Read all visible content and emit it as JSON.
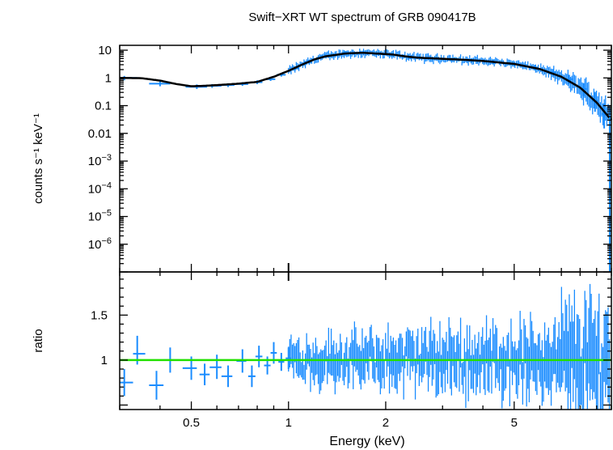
{
  "chart_data": {
    "type": "scatter",
    "title": "Swift−XRT WT spectrum of GRB 090417B",
    "xlabel": "Energy (keV)",
    "x_scale": "log",
    "xlim": [
      0.3,
      10
    ],
    "x_ticks": [
      {
        "value": 0.5,
        "label": "0.5"
      },
      {
        "value": 1,
        "label": "1"
      },
      {
        "value": 2,
        "label": "2"
      },
      {
        "value": 5,
        "label": "5"
      }
    ],
    "colors": {
      "data": "#1a8cff",
      "model": "#000000",
      "ratio_line": "#22e000"
    },
    "panels": [
      {
        "name": "spectrum",
        "ylabel": "counts s⁻¹ keV⁻¹",
        "y_scale": "log",
        "ylim": [
          1e-07,
          15
        ],
        "y_ticks": [
          {
            "value": 10,
            "label": "10"
          },
          {
            "value": 1,
            "label": "1"
          },
          {
            "value": 0.1,
            "label": "0.1"
          },
          {
            "value": 0.01,
            "label": "0.01"
          },
          {
            "value": 0.001,
            "label": "10−3"
          },
          {
            "value": 0.0001,
            "label": "10−4"
          },
          {
            "value": 1e-05,
            "label": "10−5"
          },
          {
            "value": 1e-06,
            "label": "10−6"
          }
        ],
        "series": [
          {
            "style": "crosses",
            "points": [
              {
                "x": 0.31,
                "y": 1.0,
                "xlo": 0.3,
                "xhi": 0.34,
                "ylo": 0.82,
                "yhi": 1.18
              },
              {
                "x": 0.4,
                "y": 0.62,
                "xlo": 0.37,
                "xhi": 0.43,
                "ylo": 0.5,
                "yhi": 0.74
              },
              {
                "x": 0.52,
                "y": 0.48,
                "xlo": 0.48,
                "xhi": 0.56,
                "ylo": 0.4,
                "yhi": 0.58
              },
              {
                "x": 0.58,
                "y": 0.52,
                "xlo": 0.56,
                "xhi": 0.62,
                "ylo": 0.44,
                "yhi": 0.6
              },
              {
                "x": 0.65,
                "y": 0.55,
                "xlo": 0.62,
                "xhi": 0.68,
                "ylo": 0.47,
                "yhi": 0.64
              },
              {
                "x": 0.72,
                "y": 0.6,
                "xlo": 0.69,
                "xhi": 0.75,
                "ylo": 0.52,
                "yhi": 0.7
              },
              {
                "x": 0.8,
                "y": 0.7,
                "xlo": 0.77,
                "xhi": 0.83,
                "ylo": 0.6,
                "yhi": 0.82
              },
              {
                "x": 0.88,
                "y": 0.9,
                "xlo": 0.85,
                "xhi": 0.91,
                "ylo": 0.78,
                "yhi": 1.04
              },
              {
                "x": 0.95,
                "y": 1.3,
                "xlo": 0.92,
                "xhi": 0.98,
                "ylo": 1.12,
                "yhi": 1.5
              },
              {
                "x": 1.05,
                "y": 2.2,
                "xlo": 1.02,
                "xhi": 1.08,
                "ylo": 1.9,
                "yhi": 2.6
              },
              {
                "x": 1.15,
                "y": 3.8,
                "xlo": 1.12,
                "xhi": 1.18,
                "ylo": 3.3,
                "yhi": 4.4
              },
              {
                "x": 1.3,
                "y": 6.0,
                "xlo": 1.26,
                "xhi": 1.34,
                "ylo": 5.2,
                "yhi": 7.0
              },
              {
                "x": 1.5,
                "y": 8.0,
                "xlo": 1.46,
                "xhi": 1.54,
                "ylo": 7.0,
                "yhi": 9.2
              },
              {
                "x": 1.7,
                "y": 8.3,
                "xlo": 1.65,
                "xhi": 1.75,
                "ylo": 7.3,
                "yhi": 9.6
              },
              {
                "x": 1.9,
                "y": 7.2,
                "xlo": 1.85,
                "xhi": 1.95,
                "ylo": 6.3,
                "yhi": 8.2
              },
              {
                "x": 2.1,
                "y": 6.8,
                "xlo": 2.05,
                "xhi": 2.15,
                "ylo": 6.0,
                "yhi": 7.8
              },
              {
                "x": 2.4,
                "y": 5.3,
                "xlo": 2.33,
                "xhi": 2.47,
                "ylo": 4.6,
                "yhi": 6.1
              },
              {
                "x": 2.8,
                "y": 5.0,
                "xlo": 2.72,
                "xhi": 2.88,
                "ylo": 4.4,
                "yhi": 5.7
              },
              {
                "x": 3.2,
                "y": 4.6,
                "xlo": 3.1,
                "xhi": 3.3,
                "ylo": 4.0,
                "yhi": 5.3
              },
              {
                "x": 3.7,
                "y": 4.2,
                "xlo": 3.6,
                "xhi": 3.8,
                "ylo": 3.6,
                "yhi": 4.9
              },
              {
                "x": 4.3,
                "y": 3.7,
                "xlo": 4.2,
                "xhi": 4.4,
                "ylo": 3.1,
                "yhi": 4.4
              },
              {
                "x": 5.0,
                "y": 3.2,
                "xlo": 4.85,
                "xhi": 5.15,
                "ylo": 2.6,
                "yhi": 3.9
              },
              {
                "x": 5.8,
                "y": 2.4,
                "xlo": 5.65,
                "xhi": 5.95,
                "ylo": 1.9,
                "yhi": 3.0
              },
              {
                "x": 6.6,
                "y": 1.6,
                "xlo": 6.45,
                "xhi": 6.75,
                "ylo": 1.2,
                "yhi": 2.1
              },
              {
                "x": 7.4,
                "y": 0.9,
                "xlo": 7.2,
                "xhi": 7.6,
                "ylo": 0.6,
                "yhi": 1.3
              },
              {
                "x": 8.2,
                "y": 0.4,
                "xlo": 8.0,
                "xhi": 8.4,
                "ylo": 0.22,
                "yhi": 0.65
              },
              {
                "x": 8.9,
                "y": 0.15,
                "xlo": 8.7,
                "xhi": 9.1,
                "ylo": 0.06,
                "yhi": 0.3
              },
              {
                "x": 9.5,
                "y": 0.05,
                "xlo": 9.3,
                "xhi": 9.7,
                "ylo": 0.015,
                "yhi": 0.12
              }
            ]
          },
          {
            "style": "line",
            "x": [
              0.3,
              0.35,
              0.4,
              0.45,
              0.5,
              0.55,
              0.6,
              0.7,
              0.8,
              0.9,
              1.0,
              1.1,
              1.2,
              1.3,
              1.5,
              1.7,
              1.9,
              2.1,
              2.3,
              2.5,
              3.0,
              3.5,
              4.0,
              5.0,
              6.0,
              7.0,
              8.0,
              9.0,
              10.0
            ],
            "y": [
              1.0,
              0.98,
              0.8,
              0.6,
              0.5,
              0.52,
              0.55,
              0.62,
              0.72,
              1.1,
              1.8,
              3.0,
              4.6,
              6.0,
              7.6,
              8.1,
              7.5,
              7.0,
              6.0,
              5.4,
              4.9,
              4.5,
              4.1,
              3.2,
              2.1,
              1.1,
              0.45,
              0.13,
              0.03
            ]
          }
        ]
      },
      {
        "name": "ratio",
        "ylabel": "ratio",
        "y_scale": "linear",
        "ylim": [
          0.45,
          1.98
        ],
        "y_ticks": [
          {
            "value": 1,
            "label": "1"
          },
          {
            "value": 1.5,
            "label": "1.5"
          }
        ],
        "reference_line": 1.0,
        "series": [
          {
            "style": "crosses",
            "points": [
              {
                "x": 0.31,
                "y": 0.75,
                "xlo": 0.3,
                "xhi": 0.33,
                "ylo": 0.6,
                "yhi": 0.9
              },
              {
                "x": 0.34,
                "y": 1.07,
                "xlo": 0.33,
                "xhi": 0.36,
                "ylo": 0.95,
                "yhi": 1.27
              },
              {
                "x": 0.39,
                "y": 0.72,
                "xlo": 0.37,
                "xhi": 0.41,
                "ylo": 0.56,
                "yhi": 0.88
              },
              {
                "x": 0.43,
                "y": 1.0,
                "xlo": 0.41,
                "xhi": 0.46,
                "ylo": 0.86,
                "yhi": 1.14
              },
              {
                "x": 0.5,
                "y": 0.91,
                "xlo": 0.47,
                "xhi": 0.52,
                "ylo": 0.78,
                "yhi": 1.04
              },
              {
                "x": 0.55,
                "y": 0.84,
                "xlo": 0.53,
                "xhi": 0.57,
                "ylo": 0.72,
                "yhi": 0.96
              },
              {
                "x": 0.6,
                "y": 0.92,
                "xlo": 0.57,
                "xhi": 0.62,
                "ylo": 0.79,
                "yhi": 1.06
              },
              {
                "x": 0.65,
                "y": 0.82,
                "xlo": 0.62,
                "xhi": 0.67,
                "ylo": 0.7,
                "yhi": 0.94
              },
              {
                "x": 0.72,
                "y": 0.99,
                "xlo": 0.69,
                "xhi": 0.74,
                "ylo": 0.86,
                "yhi": 1.12
              },
              {
                "x": 0.77,
                "y": 0.82,
                "xlo": 0.75,
                "xhi": 0.79,
                "ylo": 0.7,
                "yhi": 0.94
              },
              {
                "x": 0.81,
                "y": 1.04,
                "xlo": 0.79,
                "xhi": 0.83,
                "ylo": 0.92,
                "yhi": 1.16
              },
              {
                "x": 0.86,
                "y": 0.94,
                "xlo": 0.84,
                "xhi": 0.88,
                "ylo": 0.84,
                "yhi": 1.04
              },
              {
                "x": 0.9,
                "y": 1.08,
                "xlo": 0.88,
                "xhi": 0.92,
                "ylo": 0.96,
                "yhi": 1.2
              },
              {
                "x": 0.95,
                "y": 0.98,
                "xlo": 0.93,
                "xhi": 0.97,
                "ylo": 0.88,
                "yhi": 1.08
              },
              {
                "x": 1.0,
                "y": 1.02,
                "xlo": 0.98,
                "xhi": 1.02,
                "ylo": 0.9,
                "yhi": 1.14
              }
            ]
          },
          {
            "style": "dense_bars",
            "x_range": [
              1.0,
              10.0
            ],
            "y_center": 1.0,
            "note": ""
          }
        ]
      }
    ]
  }
}
